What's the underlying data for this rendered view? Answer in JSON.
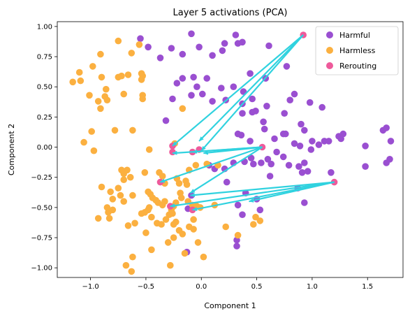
{
  "chart_data": {
    "type": "scatter",
    "title": "Layer 5 activations (PCA)",
    "xlabel": "Component 1",
    "ylabel": "Component 2",
    "xlim": [
      -1.3,
      1.82
    ],
    "ylim": [
      -1.08,
      1.04
    ],
    "xticks": [
      -1.0,
      -0.5,
      0.0,
      0.5,
      1.0,
      1.5
    ],
    "xtick_labels": [
      "−1.0",
      "−0.5",
      "0.0",
      "0.5",
      "1.0",
      "1.5"
    ],
    "yticks": [
      -1.0,
      -0.75,
      -0.5,
      -0.25,
      0.0,
      0.25,
      0.5,
      0.75,
      1.0
    ],
    "ytick_labels": [
      "−1.00",
      "−0.75",
      "−0.50",
      "−0.25",
      "0.00",
      "0.25",
      "0.50",
      "0.75",
      "1.00"
    ],
    "grid": false,
    "legend_position": "top-right",
    "series": [
      {
        "name": "Harmful",
        "color": "#9a4fd1",
        "points": [
          [
            -0.55,
            0.9
          ],
          [
            -0.48,
            0.83
          ],
          [
            -0.37,
            0.74
          ],
          [
            -0.27,
            0.82
          ],
          [
            -0.17,
            0.77
          ],
          [
            -0.09,
            0.94
          ],
          [
            -0.02,
            0.83
          ],
          [
            0.1,
            0.76
          ],
          [
            0.19,
            0.8
          ],
          [
            0.21,
            0.86
          ],
          [
            0.31,
            0.93
          ],
          [
            0.33,
            0.86
          ],
          [
            0.37,
            0.87
          ],
          [
            0.61,
            0.84
          ],
          [
            0.77,
            0.67
          ],
          [
            -0.22,
            0.53
          ],
          [
            -0.17,
            0.57
          ],
          [
            -0.07,
            0.58
          ],
          [
            -0.04,
            0.5
          ],
          [
            0.05,
            0.57
          ],
          [
            0.18,
            0.49
          ],
          [
            0.29,
            0.5
          ],
          [
            0.38,
            0.46
          ],
          [
            0.44,
            0.61
          ],
          [
            0.58,
            0.57
          ],
          [
            -0.26,
            0.4
          ],
          [
            -0.09,
            0.43
          ],
          [
            0.01,
            0.44
          ],
          [
            0.1,
            0.38
          ],
          [
            0.22,
            0.39
          ],
          [
            0.37,
            0.36
          ],
          [
            0.46,
            0.4
          ],
          [
            0.49,
            0.3
          ],
          [
            0.59,
            0.34
          ],
          [
            0.8,
            0.39
          ],
          [
            0.84,
            0.44
          ],
          [
            0.98,
            0.37
          ],
          [
            1.09,
            0.33
          ],
          [
            -0.32,
            0.22
          ],
          [
            0.37,
            0.28
          ],
          [
            0.46,
            0.29
          ],
          [
            0.56,
            0.21
          ],
          [
            0.75,
            0.28
          ],
          [
            0.9,
            0.19
          ],
          [
            0.93,
            0.14
          ],
          [
            1.0,
            0.05
          ],
          [
            1.11,
            0.05
          ],
          [
            0.33,
            0.11
          ],
          [
            0.36,
            0.1
          ],
          [
            0.44,
            0.05
          ],
          [
            0.57,
            0.15
          ],
          [
            0.66,
            0.07
          ],
          [
            0.74,
            0.11
          ],
          [
            0.76,
            0.11
          ],
          [
            0.84,
            0.03
          ],
          [
            0.89,
            0.01
          ],
          [
            0.99,
            -0.02
          ],
          [
            1.06,
            0.02
          ],
          [
            1.15,
            0.05
          ],
          [
            1.24,
            0.09
          ],
          [
            1.28,
            0.11
          ],
          [
            1.26,
            0.07
          ],
          [
            1.48,
            0.01
          ],
          [
            1.64,
            0.14
          ],
          [
            1.67,
            0.16
          ],
          [
            1.71,
            0.05
          ],
          [
            1.7,
            -0.1
          ],
          [
            1.67,
            -0.13
          ],
          [
            0.07,
            -0.15
          ],
          [
            0.12,
            -0.18
          ],
          [
            0.21,
            -0.18
          ],
          [
            0.29,
            -0.13
          ],
          [
            0.39,
            -0.12
          ],
          [
            0.45,
            -0.09
          ],
          [
            0.47,
            -0.14
          ],
          [
            0.54,
            -0.13
          ],
          [
            0.6,
            -0.1
          ],
          [
            0.63,
            -0.14
          ],
          [
            0.68,
            -0.04
          ],
          [
            0.74,
            -0.08
          ],
          [
            0.79,
            -0.15
          ],
          [
            0.88,
            -0.16
          ],
          [
            0.91,
            -0.21
          ],
          [
            0.93,
            -0.13
          ],
          [
            0.96,
            -0.2
          ],
          [
            1.17,
            -0.21
          ],
          [
            1.48,
            -0.16
          ],
          [
            0.33,
            -0.48
          ],
          [
            0.37,
            -0.56
          ],
          [
            0.4,
            -0.38
          ],
          [
            0.5,
            -0.43
          ],
          [
            0.62,
            -0.24
          ],
          [
            0.87,
            -0.34
          ],
          [
            0.93,
            -0.46
          ],
          [
            -0.09,
            -0.4
          ],
          [
            -0.12,
            -0.51
          ],
          [
            0.23,
            -0.29
          ],
          [
            0.32,
            -0.77
          ],
          [
            0.32,
            -0.82
          ],
          [
            -0.13,
            -0.87
          ],
          [
            0.53,
            -0.52
          ]
        ]
      },
      {
        "name": "Harmless",
        "color": "#fbb040",
        "points": [
          [
            -0.75,
            0.88
          ],
          [
            -0.91,
            0.77
          ],
          [
            -0.56,
            0.85
          ],
          [
            -0.54,
            0.61
          ],
          [
            -0.53,
            0.59
          ],
          [
            -0.63,
            0.78
          ],
          [
            -1.16,
            0.54
          ],
          [
            -1.1,
            0.62
          ],
          [
            -1.09,
            0.55
          ],
          [
            -0.98,
            0.67
          ],
          [
            -0.9,
            0.58
          ],
          [
            -0.86,
            0.48
          ],
          [
            -0.87,
            0.42
          ],
          [
            -0.93,
            0.38
          ],
          [
            -0.85,
            0.39
          ],
          [
            -0.91,
            0.32
          ],
          [
            -1.01,
            0.43
          ],
          [
            -0.75,
            0.58
          ],
          [
            -0.72,
            0.59
          ],
          [
            -0.66,
            0.6
          ],
          [
            -0.54,
            0.56
          ],
          [
            -0.53,
            0.43
          ],
          [
            -0.7,
            0.44
          ],
          [
            -0.53,
            0.4
          ],
          [
            -0.17,
            0.32
          ],
          [
            -1.06,
            0.04
          ],
          [
            -0.99,
            0.13
          ],
          [
            -0.97,
            -0.03
          ],
          [
            -0.78,
            0.14
          ],
          [
            -0.62,
            0.14
          ],
          [
            -0.47,
            -0.02
          ],
          [
            -0.24,
            0.03
          ],
          [
            -0.72,
            -0.19
          ],
          [
            -0.7,
            -0.22
          ],
          [
            -0.67,
            -0.19
          ],
          [
            -0.7,
            -0.27
          ],
          [
            -0.64,
            -0.25
          ],
          [
            -0.51,
            -0.21
          ],
          [
            -0.38,
            -0.21
          ],
          [
            -0.35,
            -0.24
          ],
          [
            -0.33,
            -0.3
          ],
          [
            -0.22,
            -0.26
          ],
          [
            -0.2,
            -0.3
          ],
          [
            -0.14,
            -0.28
          ],
          [
            -0.13,
            -0.31
          ],
          [
            -0.11,
            -0.19
          ],
          [
            -0.05,
            -0.15
          ],
          [
            0.05,
            -0.14
          ],
          [
            0.15,
            -0.15
          ],
          [
            -0.9,
            -0.33
          ],
          [
            -0.82,
            -0.37
          ],
          [
            -0.8,
            -0.43
          ],
          [
            -0.75,
            -0.34
          ],
          [
            -0.73,
            -0.4
          ],
          [
            -0.62,
            -0.4
          ],
          [
            -0.48,
            -0.37
          ],
          [
            -0.46,
            -0.39
          ],
          [
            -0.44,
            -0.42
          ],
          [
            -0.41,
            -0.44
          ],
          [
            -0.39,
            -0.46
          ],
          [
            -0.35,
            -0.48
          ],
          [
            -0.33,
            -0.45
          ],
          [
            -0.27,
            -0.52
          ],
          [
            -0.25,
            -0.49
          ],
          [
            -0.23,
            -0.46
          ],
          [
            -0.19,
            -0.38
          ],
          [
            -0.18,
            -0.42
          ],
          [
            -0.12,
            -0.45
          ],
          [
            -0.08,
            -0.48
          ],
          [
            -0.04,
            -0.49
          ],
          [
            -0.01,
            -0.5
          ],
          [
            0.12,
            -0.48
          ],
          [
            -0.85,
            -0.5
          ],
          [
            -0.84,
            -0.54
          ],
          [
            -0.8,
            -0.52
          ],
          [
            -0.7,
            -0.45
          ],
          [
            -0.66,
            -0.65
          ],
          [
            -0.6,
            -0.63
          ],
          [
            -0.54,
            -0.55
          ],
          [
            -0.51,
            -0.54
          ],
          [
            -0.48,
            -0.52
          ],
          [
            -0.47,
            -0.5
          ],
          [
            -0.45,
            -0.58
          ],
          [
            -0.4,
            -0.63
          ],
          [
            -0.36,
            -0.64
          ],
          [
            -0.32,
            -0.6
          ],
          [
            -0.29,
            -0.56
          ],
          [
            -0.26,
            -0.55
          ],
          [
            -0.25,
            -0.64
          ],
          [
            -0.23,
            -0.62
          ],
          [
            -0.2,
            -0.69
          ],
          [
            -0.17,
            -0.72
          ],
          [
            -0.11,
            -0.66
          ],
          [
            -0.07,
            -0.6
          ],
          [
            -0.07,
            -0.68
          ],
          [
            0.22,
            -0.66
          ],
          [
            0.33,
            -0.73
          ],
          [
            0.47,
            -0.64
          ],
          [
            0.49,
            -0.58
          ],
          [
            0.53,
            -0.61
          ],
          [
            -0.93,
            -0.59
          ],
          [
            -0.83,
            -0.59
          ],
          [
            -0.5,
            -0.71
          ],
          [
            -0.45,
            -0.85
          ],
          [
            -0.3,
            -0.79
          ],
          [
            -0.25,
            -0.75
          ],
          [
            -0.15,
            -0.88
          ],
          [
            -0.62,
            -0.91
          ],
          [
            -0.28,
            -0.98
          ],
          [
            -0.63,
            -1.03
          ],
          [
            -0.68,
            -0.98
          ],
          [
            0.02,
            -0.91
          ],
          [
            -0.03,
            -0.79
          ]
        ]
      },
      {
        "name": "Rerouting",
        "color": "#ee5a9b",
        "points": [
          [
            0.92,
            0.93
          ],
          [
            0.55,
            0.0
          ],
          [
            1.2,
            -0.29
          ],
          [
            -0.26,
            0.01
          ],
          [
            -0.26,
            -0.04
          ],
          [
            -0.08,
            -0.04
          ],
          [
            -0.02,
            -0.02
          ],
          [
            -0.37,
            -0.29
          ],
          [
            -0.28,
            -0.49
          ],
          [
            -0.08,
            -0.52
          ]
        ]
      }
    ],
    "arrows": {
      "color": "#30d2df",
      "segments": [
        [
          0.92,
          0.93,
          -0.26,
          0.01
        ],
        [
          0.92,
          0.93,
          -0.02,
          0.05
        ],
        [
          0.92,
          0.93,
          0.0,
          -0.03
        ],
        [
          0.55,
          0.0,
          0.02,
          -0.05
        ],
        [
          0.55,
          0.0,
          -0.08,
          -0.04
        ],
        [
          0.55,
          0.0,
          -0.26,
          -0.05
        ],
        [
          0.55,
          0.0,
          -0.37,
          -0.29
        ],
        [
          0.55,
          0.0,
          -0.1,
          -0.38
        ],
        [
          1.2,
          -0.29,
          -0.08,
          -0.52
        ],
        [
          1.2,
          -0.29,
          -0.28,
          -0.49
        ],
        [
          1.2,
          -0.29,
          0.43,
          -0.45
        ],
        [
          1.2,
          -0.29,
          -0.1,
          -0.4
        ]
      ]
    }
  }
}
